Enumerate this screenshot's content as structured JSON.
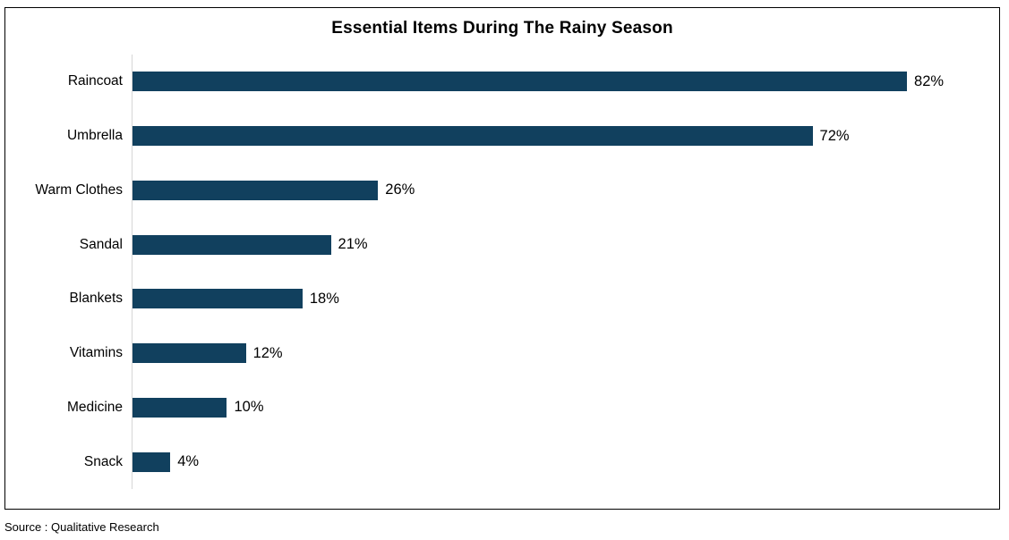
{
  "chart": {
    "title": "Essential Items During The Rainy Season",
    "source": "Source : Qualitative Research"
  },
  "chart_data": {
    "type": "bar",
    "orientation": "horizontal",
    "title": "Essential Items During The Rainy Season",
    "categories": [
      "Raincoat",
      "Umbrella",
      "Warm Clothes",
      "Sandal",
      "Blankets",
      "Vitamins",
      "Medicine",
      "Snack"
    ],
    "values": [
      82,
      72,
      26,
      21,
      18,
      12,
      10,
      4
    ],
    "value_labels": [
      "82%",
      "72%",
      "26%",
      "21%",
      "18%",
      "12%",
      "10%",
      "4%"
    ],
    "xlabel": "",
    "ylabel": "",
    "xlim": [
      0,
      91
    ],
    "grid": false,
    "legend": false,
    "bar_color": "#11405e",
    "axis_line_color": "#d6d6d6",
    "source_text": "Source : Qualitative Research"
  }
}
